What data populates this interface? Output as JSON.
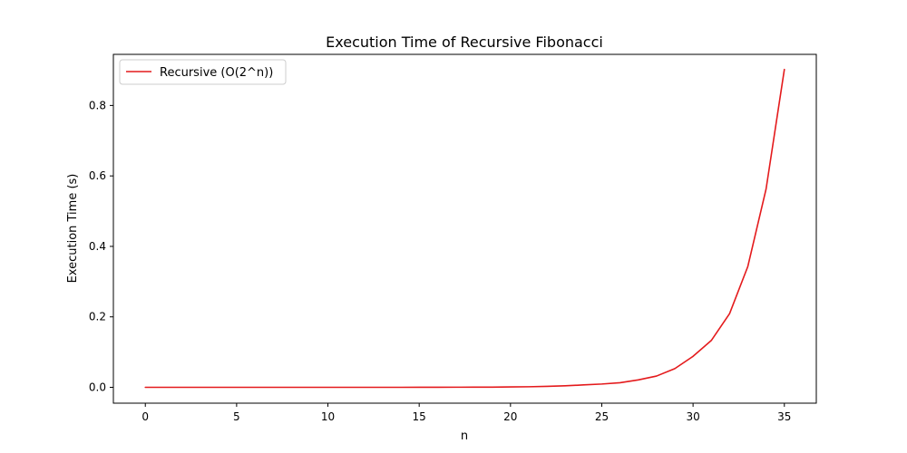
{
  "chart_data": {
    "type": "line",
    "title": "Execution Time of Recursive Fibonacci",
    "xlabel": "n",
    "ylabel": "Execution Time (s)",
    "xlim": [
      -1.75,
      36.75
    ],
    "ylim": [
      -0.045,
      0.945
    ],
    "xticks": [
      0,
      5,
      10,
      15,
      20,
      25,
      30,
      35
    ],
    "yticks": [
      0.0,
      0.2,
      0.4,
      0.6,
      0.8
    ],
    "ytick_labels": [
      "0.0",
      "0.2",
      "0.4",
      "0.6",
      "0.8"
    ],
    "grid": false,
    "legend_position": "upper-left",
    "series": [
      {
        "name": "Recursive (O(2^n))",
        "color": "#e41a1c",
        "x": [
          0,
          1,
          2,
          3,
          4,
          5,
          6,
          7,
          8,
          9,
          10,
          11,
          12,
          13,
          14,
          15,
          16,
          17,
          18,
          19,
          20,
          21,
          22,
          23,
          24,
          25,
          26,
          27,
          28,
          29,
          30,
          31,
          32,
          33,
          34,
          35
        ],
        "y": [
          0,
          0,
          0,
          0,
          0,
          0,
          0,
          0,
          0,
          0,
          0,
          0,
          0,
          0,
          0,
          0.0001,
          0.0002,
          0.0003,
          0.0004,
          0.0006,
          0.001,
          0.0016,
          0.0027,
          0.0043,
          0.0068,
          0.0093,
          0.013,
          0.021,
          0.032,
          0.053,
          0.088,
          0.133,
          0.209,
          0.343,
          0.563,
          0.902
        ]
      }
    ]
  }
}
